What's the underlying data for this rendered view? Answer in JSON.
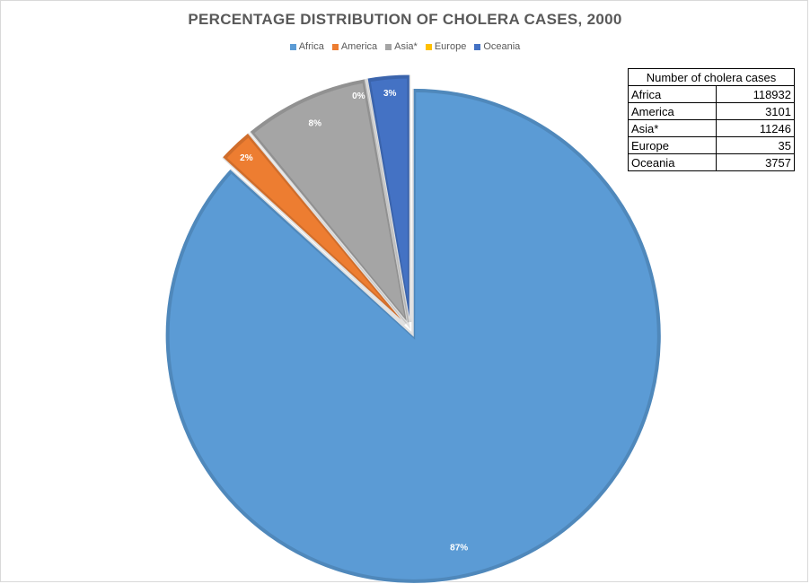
{
  "chart_data": {
    "type": "pie",
    "title": "PERCENTAGE DISTRIBUTION OF CHOLERA CASES, 2000",
    "categories": [
      "Africa",
      "America",
      "Asia*",
      "Europe",
      "Oceania"
    ],
    "values": [
      118932,
      3101,
      11246,
      35,
      3757
    ],
    "percent_labels": [
      "87%",
      "2%",
      "8%",
      "0%",
      "3%"
    ],
    "colors": [
      "#5b9bd5",
      "#ed7d31",
      "#a5a5a5",
      "#ffc000",
      "#4472c4"
    ],
    "exploded": true,
    "legend_position": "top"
  },
  "table": {
    "header": "Number of cholera cases",
    "rows": [
      {
        "region": "Africa",
        "cases": "118932"
      },
      {
        "region": "America",
        "cases": "3101"
      },
      {
        "region": "Asia*",
        "cases": "11246"
      },
      {
        "region": "Europe",
        "cases": "35"
      },
      {
        "region": "Oceania",
        "cases": "3757"
      }
    ]
  }
}
